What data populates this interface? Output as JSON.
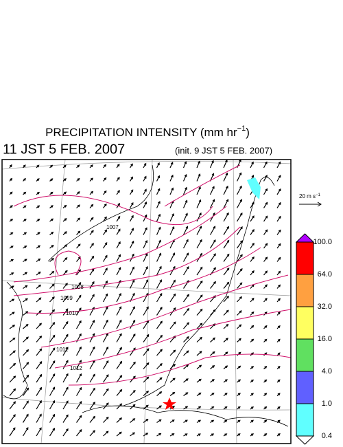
{
  "header": {
    "title": "PRECIPITATION INTENSITY (mm hr",
    "title_exponent": "−1",
    "title_close": ")",
    "valid_time": "11 JST 5 FEB. 2007",
    "init_time": "(init. 9 JST 5 FEB. 2007)"
  },
  "scale_arrow": {
    "label": "20 m s",
    "exponent": "−1"
  },
  "isobar_labels": [
    "1007",
    "1008",
    "1009",
    "1010",
    "1011",
    "1012"
  ],
  "legend": {
    "labels": [
      "100.0",
      "64.0",
      "32.0",
      "16.0",
      "4.0",
      "1.0",
      "0.4"
    ],
    "colors": [
      "#b000ff",
      "#ff0000",
      "#ffa040",
      "#ffff60",
      "#60e060",
      "#6060ff",
      "#60ffff",
      "#ffffff"
    ]
  }
}
